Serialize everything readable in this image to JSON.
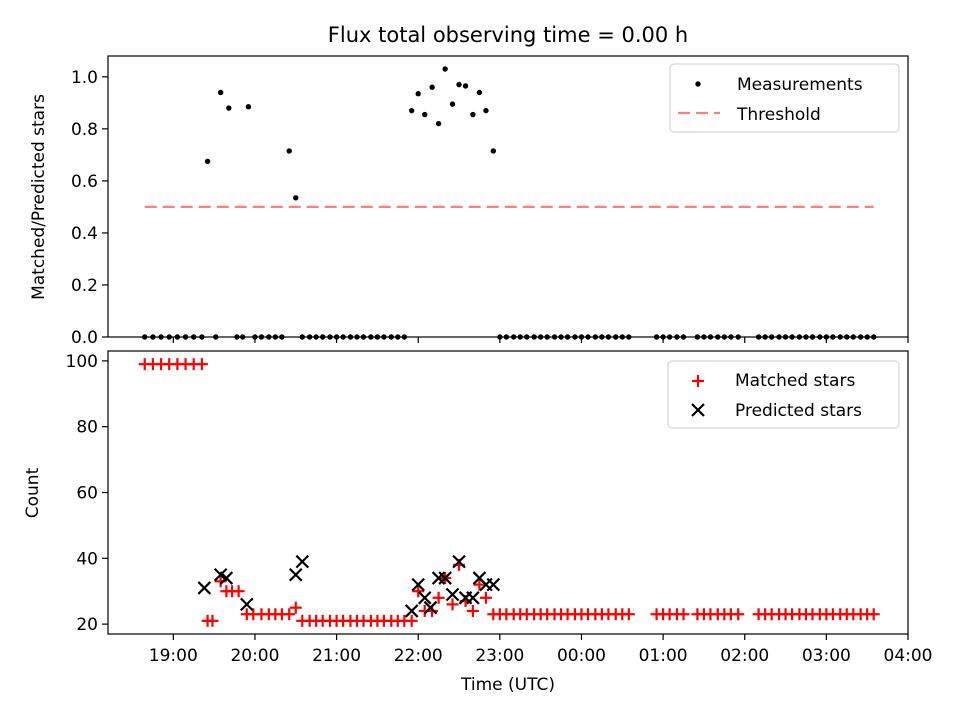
{
  "chart_data": [
    {
      "type": "scatter",
      "title": "Flux total observing time = 0.00 h",
      "xlabel": "",
      "ylabel": "Matched/Predicted stars",
      "ylim": [
        0,
        1.08
      ],
      "yticks": [
        "0.0",
        "0.2",
        "0.4",
        "0.6",
        "0.8",
        "1.0"
      ],
      "legend_position": "upper right",
      "series": [
        {
          "name": "Measurements",
          "marker": "dot",
          "color": "#000000",
          "x": [
            18.65,
            18.75,
            18.85,
            18.95,
            19.05,
            19.15,
            19.25,
            19.35,
            19.42,
            19.52,
            19.58,
            19.68,
            19.78,
            19.85,
            19.92,
            20.0,
            20.08,
            20.17,
            20.25,
            20.33,
            20.42,
            20.5,
            20.58,
            20.67,
            20.75,
            20.83,
            20.92,
            21.0,
            21.08,
            21.17,
            21.25,
            21.33,
            21.42,
            21.5,
            21.58,
            21.67,
            21.75,
            21.83,
            21.92,
            22.0,
            22.08,
            22.17,
            22.25,
            22.33,
            22.42,
            22.5,
            22.58,
            22.67,
            22.75,
            22.83,
            22.92,
            23.0,
            23.08,
            23.17,
            23.25,
            23.33,
            23.42,
            23.5,
            23.58,
            23.67,
            23.75,
            23.83,
            23.92,
            24.0,
            24.08,
            24.17,
            24.25,
            24.33,
            24.42,
            24.5,
            24.58,
            24.92,
            25.0,
            25.08,
            25.17,
            25.25,
            25.42,
            25.5,
            25.58,
            25.67,
            25.75,
            25.83,
            25.92,
            26.17,
            26.25,
            26.33,
            26.42,
            26.5,
            26.58,
            26.67,
            26.75,
            26.83,
            26.92,
            27.0,
            27.08,
            27.17,
            27.25,
            27.33,
            27.42,
            27.5,
            27.58
          ],
          "y": [
            0,
            0,
            0,
            0,
            0,
            0,
            0,
            0,
            0.675,
            0,
            0.94,
            0.88,
            0,
            0,
            0.885,
            0,
            0,
            0,
            0,
            0,
            0.715,
            0.535,
            0,
            0,
            0,
            0,
            0,
            0,
            0,
            0,
            0,
            0,
            0,
            0,
            0,
            0,
            0,
            0,
            0.87,
            0.935,
            0.855,
            0.96,
            0.82,
            1.03,
            0.895,
            0.97,
            0.965,
            0.855,
            0.94,
            0.87,
            0.715,
            0,
            0,
            0,
            0,
            0,
            0,
            0,
            0,
            0,
            0,
            0,
            0,
            0,
            0,
            0,
            0,
            0,
            0,
            0,
            0,
            0,
            0,
            0,
            0,
            0,
            0,
            0,
            0,
            0,
            0,
            0,
            0,
            0,
            0,
            0,
            0,
            0,
            0,
            0,
            0,
            0,
            0,
            0,
            0,
            0,
            0,
            0,
            0,
            0,
            0
          ]
        },
        {
          "name": "Threshold",
          "marker": "dashed-line",
          "color": "#ff7f7f",
          "x": [
            18.65,
            27.58
          ],
          "y": [
            0.5,
            0.5
          ]
        }
      ]
    },
    {
      "type": "scatter",
      "title": "",
      "xlabel": "Time (UTC)",
      "ylabel": "Count",
      "xlim": [
        18.2,
        28.0
      ],
      "ylim": [
        17,
        103
      ],
      "yticks": [
        "20",
        "40",
        "60",
        "80",
        "100"
      ],
      "x_tick_values": [
        19,
        20,
        21,
        22,
        23,
        24,
        25,
        26,
        27,
        28
      ],
      "x_tick_labels": [
        "19:00",
        "20:00",
        "21:00",
        "22:00",
        "23:00",
        "00:00",
        "01:00",
        "02:00",
        "03:00",
        "04:00"
      ],
      "legend_position": "upper right",
      "series": [
        {
          "name": "Matched stars",
          "marker": "plus",
          "color": "#ff0000",
          "x": [
            18.65,
            18.75,
            18.85,
            18.95,
            19.05,
            19.15,
            19.25,
            19.35,
            19.42,
            19.48,
            19.58,
            19.65,
            19.72,
            19.8,
            19.9,
            19.98,
            20.08,
            20.17,
            20.25,
            20.33,
            20.42,
            20.5,
            20.58,
            20.67,
            20.75,
            20.83,
            20.92,
            21.0,
            21.08,
            21.17,
            21.25,
            21.33,
            21.42,
            21.5,
            21.58,
            21.67,
            21.75,
            21.83,
            21.92,
            22.0,
            22.08,
            22.17,
            22.25,
            22.33,
            22.42,
            22.5,
            22.58,
            22.67,
            22.75,
            22.83,
            22.92,
            23.0,
            23.08,
            23.17,
            23.25,
            23.33,
            23.42,
            23.5,
            23.58,
            23.67,
            23.75,
            23.83,
            23.92,
            24.0,
            24.08,
            24.17,
            24.25,
            24.33,
            24.42,
            24.5,
            24.58,
            24.92,
            25.0,
            25.08,
            25.17,
            25.25,
            25.42,
            25.5,
            25.58,
            25.67,
            25.75,
            25.83,
            25.92,
            26.17,
            26.25,
            26.33,
            26.42,
            26.5,
            26.58,
            26.67,
            26.75,
            26.83,
            26.92,
            27.0,
            27.08,
            27.17,
            27.25,
            27.33,
            27.42,
            27.5,
            27.58
          ],
          "y": [
            99,
            99,
            99,
            99,
            99,
            99,
            99,
            99,
            21,
            21,
            33,
            30,
            30,
            30,
            23,
            23,
            23,
            23,
            23,
            23,
            23,
            25,
            21,
            21,
            21,
            21,
            21,
            21,
            21,
            21,
            21,
            21,
            21,
            21,
            21,
            21,
            21,
            21,
            21,
            30,
            24,
            24,
            28,
            34,
            26,
            38,
            27,
            24,
            32,
            28,
            23,
            23,
            23,
            23,
            23,
            23,
            23,
            23,
            23,
            23,
            23,
            23,
            23,
            23,
            23,
            23,
            23,
            23,
            23,
            23,
            23,
            23,
            23,
            23,
            23,
            23,
            23,
            23,
            23,
            23,
            23,
            23,
            23,
            23,
            23,
            23,
            23,
            23,
            23,
            23,
            23,
            23,
            23,
            23,
            23,
            23,
            23,
            23,
            23,
            23,
            23
          ]
        },
        {
          "name": "Predicted stars",
          "marker": "x",
          "color": "#000000",
          "x": [
            19.38,
            19.58,
            19.65,
            19.9,
            20.5,
            20.58,
            21.92,
            22.0,
            22.08,
            22.15,
            22.25,
            22.33,
            22.42,
            22.5,
            22.58,
            22.67,
            22.75,
            22.83,
            22.92
          ],
          "y": [
            31,
            35,
            34,
            26,
            35,
            39,
            24,
            32,
            28,
            25,
            34,
            34,
            29,
            39,
            28,
            28,
            34,
            32,
            32
          ]
        }
      ]
    }
  ]
}
